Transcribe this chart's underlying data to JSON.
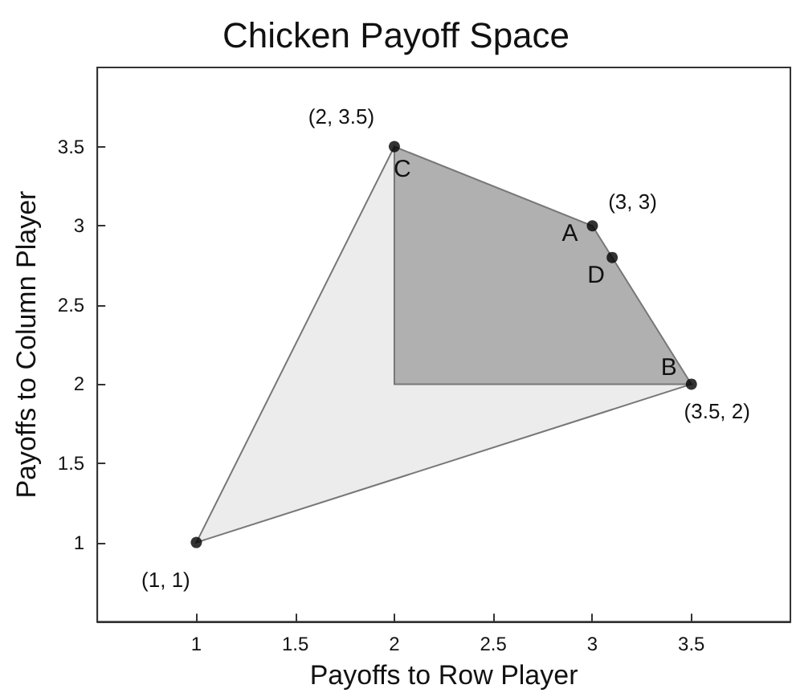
{
  "chart_data": {
    "type": "scatter",
    "title": "Chicken Payoff Space",
    "xlabel": "Payoffs to Row Player",
    "ylabel": "Payoffs to Column Player",
    "xlim": [
      0.5,
      4
    ],
    "ylim": [
      0.5,
      4
    ],
    "xticks": [
      1,
      1.5,
      2,
      2.5,
      3,
      3.5
    ],
    "yticks": [
      1,
      1.5,
      2,
      2.5,
      3,
      3.5
    ],
    "grid": false,
    "series": [
      {
        "type": "area",
        "color": "#ececec",
        "x": [
          1,
          2,
          3.5
        ],
        "values": [
          1,
          3.5,
          2
        ]
      },
      {
        "type": "area",
        "color": "#b0b0b0",
        "x": [
          2,
          2,
          3,
          3.5
        ],
        "values": [
          2,
          3.5,
          3,
          2
        ]
      },
      {
        "marker": "circle",
        "color": "#000000",
        "x": [
          1,
          2,
          3,
          3.1,
          3.5
        ],
        "values": [
          1,
          3.5,
          3,
          2.8,
          2
        ]
      }
    ],
    "annotations": [
      {
        "text": "(2, 3.5)",
        "x": 2,
        "y": 3.5
      },
      {
        "text": "(3, 3)",
        "x": 3,
        "y": 3
      },
      {
        "text": "(3.5, 2)",
        "x": 3.5,
        "y": 2
      },
      {
        "text": "(1, 1)",
        "x": 1,
        "y": 1
      },
      {
        "text": "C",
        "x": 2,
        "y": 3.5
      },
      {
        "text": "A",
        "x": 3,
        "y": 3
      },
      {
        "text": "D",
        "x": 3.1,
        "y": 2.8
      },
      {
        "text": "B",
        "x": 3.5,
        "y": 2
      }
    ]
  }
}
